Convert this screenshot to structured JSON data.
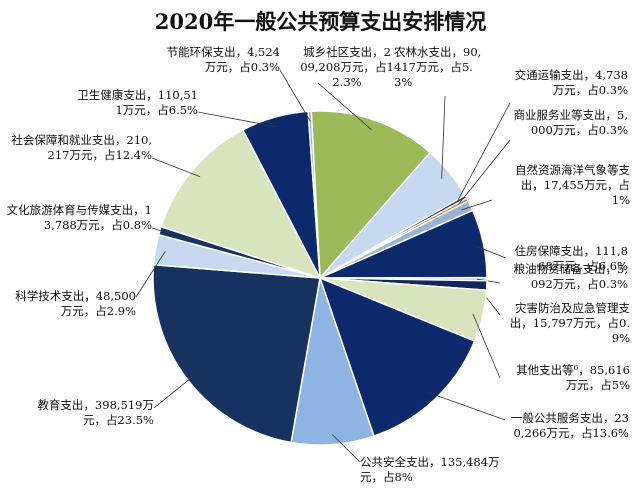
{
  "chart_data": {
    "type": "pie",
    "title": "2020年一般公共预算支出安排情况",
    "slices": [
      {
        "name": "城乡社区支出",
        "amount": "209,208",
        "unit": "万元",
        "percent": 12.3,
        "label": "城乡社区支出，209,208万元，占12.3%",
        "color": "#9bbb59"
      },
      {
        "name": "农林水支出",
        "amount": "90,417",
        "unit": "万元",
        "percent": 5.3,
        "label": "农林水支出，90,417万元，占5.3%",
        "color": "#c6d9f1"
      },
      {
        "name": "交通运输支出",
        "amount": "4,738",
        "unit": "万元",
        "percent": 0.3,
        "label": "交通运输支出，4,738万元，占0.3%",
        "color": "#1f3864"
      },
      {
        "name": "商业服务业等支出",
        "amount": "5,000",
        "unit": "万元",
        "percent": 0.3,
        "label": "商业服务业等支出，5,000万元，占0.3%",
        "color": "#e46c0a"
      },
      {
        "name": "自然资源海洋气象等支出",
        "amount": "17,455",
        "unit": "万元",
        "percent": 1,
        "label": "自然资源海洋气象等支出，17,455万元，占1%",
        "color": "#95b3d7"
      },
      {
        "name": "住房保障支出",
        "amount": "111,868",
        "unit": "万元",
        "percent": 6.6,
        "label": "住房保障支出，111,868万元，占6.6%",
        "color": "#0c2a6b"
      },
      {
        "name": "粮油物资储备支出",
        "amount": "5,092",
        "unit": "万元",
        "percent": 0.3,
        "label": "粮油物资储备支出，5,092万元，占0.3%",
        "color": "#b8cce4"
      },
      {
        "name": "灾害防治及应急管理支出",
        "amount": "15,797",
        "unit": "万元",
        "percent": 0.9,
        "label": "灾害防治及应急管理支出，15,797万元，占0.9%",
        "color": "#13275e"
      },
      {
        "name": "其他支出等⁶",
        "amount": "85,616",
        "unit": "万元",
        "percent": 5,
        "label": "其他支出等⁶，85,616万元，占5%",
        "color": "#d7e4bd"
      },
      {
        "name": "一般公共服务支出",
        "amount": "230,266",
        "unit": "万元",
        "percent": 13.6,
        "label": "一般公共服务支出，230,266万元，占13.6%",
        "color": "#0c2a6b"
      },
      {
        "name": "公共安全支出",
        "amount": "135,484",
        "unit": "万元",
        "percent": 8,
        "label": "公共安全支出，135,484万元，占8%",
        "color": "#8eb4e3"
      },
      {
        "name": "教育支出",
        "amount": "398,519",
        "unit": "万元",
        "percent": 23.5,
        "label": "教育支出，398,519万元，占23.5%",
        "color": "#17325e"
      },
      {
        "name": "科学技术支出",
        "amount": "48,500",
        "unit": "万元",
        "percent": 2.9,
        "label": "科学技术支出，48,500万元，占2.9%",
        "color": "#c6d9f1"
      },
      {
        "name": "文化旅游体育与传媒支出",
        "amount": "13,788",
        "unit": "万元",
        "percent": 0.8,
        "label": "文化旅游体育与传媒支出，13,788万元，占0.8%",
        "color": "#17325e"
      },
      {
        "name": "社会保障和就业支出",
        "amount": "210,217",
        "unit": "万元",
        "percent": 12.4,
        "label": "社会保障和就业支出，210,217万元，占12.4%",
        "color": "#d7e4bd"
      },
      {
        "name": "卫生健康支出",
        "amount": "110,511",
        "unit": "万元",
        "percent": 6.5,
        "label": "卫生健康支出，110,511万元，占6.5%",
        "color": "#0c2a6b"
      },
      {
        "name": "节能环保支出",
        "amount": "4,524",
        "unit": "万元",
        "percent": 0.3,
        "label": "节能环保支出，4,524万元，占0.3%",
        "color": "#95b3d7"
      }
    ],
    "legend": "none"
  }
}
